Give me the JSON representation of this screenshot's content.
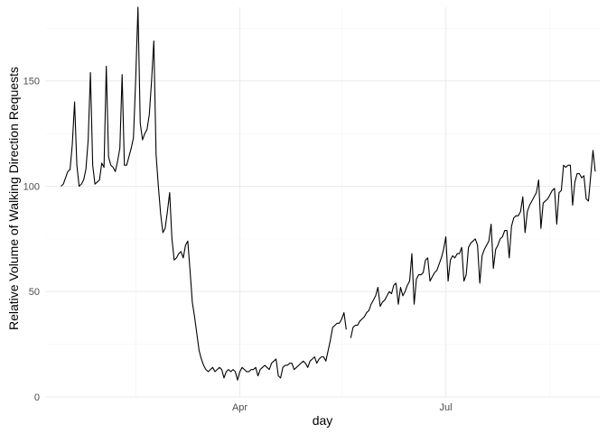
{
  "chart_data": {
    "type": "line",
    "title": "",
    "xlabel": "day",
    "ylabel": "Relative Volume of Walking Direction Requests",
    "x_start": "2020-01-13",
    "x_end": "2020-08-31",
    "xlim": [
      "2020-01-06",
      "2020-09-07"
    ],
    "ylim": [
      0,
      185
    ],
    "x_ticks": [
      {
        "date": "2020-04-01",
        "label": "Apr"
      },
      {
        "date": "2020-07-01",
        "label": "Jul"
      }
    ],
    "x_minor_ticks": [
      "2020-02-15",
      "2020-05-16",
      "2020-08-16"
    ],
    "y_ticks": [
      0,
      50,
      100,
      150
    ],
    "y_minor_ticks": [
      25,
      75,
      125,
      175
    ],
    "grid": true,
    "legend": "none",
    "line_color": "#000000",
    "values": [
      100,
      101,
      104,
      107,
      108,
      120,
      140,
      110,
      100,
      101,
      103,
      108,
      122,
      154,
      110,
      101,
      102,
      103,
      111,
      109,
      157,
      114,
      110,
      109,
      107,
      112,
      118,
      153,
      110,
      110,
      114,
      118,
      123,
      151,
      185,
      130,
      122,
      125,
      127,
      134,
      150,
      169,
      115,
      100,
      87,
      78,
      80,
      88,
      97,
      75,
      65,
      66,
      68,
      69,
      66,
      72,
      74,
      60,
      45,
      38,
      30,
      22,
      18,
      15,
      13,
      12,
      13,
      14,
      12,
      13,
      14,
      13,
      9,
      12,
      13,
      12,
      13,
      12,
      8,
      12,
      14,
      13,
      12,
      12,
      13,
      13,
      14,
      10,
      13,
      14,
      15,
      14,
      13,
      16,
      17,
      18,
      10,
      9,
      14,
      15,
      15,
      16,
      16,
      13,
      14,
      15,
      16,
      17,
      16,
      14,
      17,
      18,
      19,
      16,
      18,
      19,
      19,
      17,
      22,
      27,
      33,
      34,
      35,
      35,
      37,
      40,
      32,
      null,
      28,
      33,
      34,
      34,
      36,
      37,
      38,
      40,
      41,
      44,
      46,
      48,
      52,
      43,
      45,
      46,
      48,
      50,
      49,
      53,
      54,
      44,
      52,
      48,
      50,
      53,
      55,
      68,
      44,
      56,
      58,
      58,
      59,
      65,
      66,
      55,
      57,
      59,
      60,
      63,
      66,
      70,
      76,
      55,
      65,
      67,
      66,
      68,
      68,
      71,
      55,
      58,
      71,
      73,
      74,
      75,
      72,
      54,
      67,
      70,
      72,
      74,
      82,
      61,
      70,
      72,
      75,
      76,
      79,
      79,
      66,
      81,
      85,
      86,
      86,
      88,
      95,
      78,
      88,
      91,
      93,
      95,
      97,
      103,
      80,
      92,
      93,
      94,
      96,
      98,
      99,
      82,
      97,
      98,
      110,
      109,
      110,
      110,
      91,
      102,
      106,
      106,
      104,
      105,
      94,
      93,
      105,
      117,
      107
    ]
  }
}
